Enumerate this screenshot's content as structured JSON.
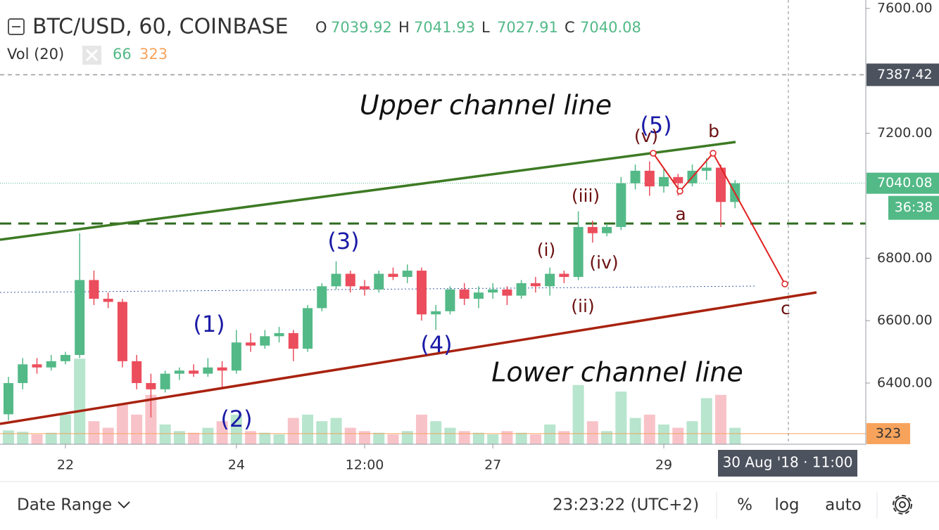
{
  "chart_data": {
    "type": "candlestick",
    "title": "BTC/USD, 60, COINBASE",
    "ohlc_legend": [
      {
        "label": "O",
        "value": 7039.92
      },
      {
        "label": "H",
        "value": 7041.93
      },
      {
        "label": "L",
        "value": 7027.91
      },
      {
        "label": "C",
        "value": 7040.08
      }
    ],
    "categories": [
      null,
      null,
      null,
      null,
      "22",
      null,
      null,
      null,
      null,
      null,
      null,
      null,
      null,
      null,
      null,
      null,
      "24",
      null,
      null,
      null,
      null,
      null,
      null,
      null,
      null,
      "12:00",
      null,
      null,
      null,
      null,
      null,
      null,
      null,
      null,
      "27",
      null,
      null,
      null,
      null,
      null,
      null,
      null,
      null,
      null,
      null,
      null,
      "29",
      null,
      null,
      null,
      null,
      null
    ],
    "open": [
      6300,
      6400,
      6460,
      6450,
      6470,
      6490,
      6730,
      6670,
      6660,
      6470,
      6400,
      6380,
      6430,
      6440,
      6430,
      6450,
      6440,
      6530,
      6520,
      6550,
      6560,
      6510,
      6640,
      6710,
      6750,
      6710,
      6700,
      6750,
      6740,
      6760,
      6620,
      6630,
      6700,
      6670,
      6690,
      6700,
      6680,
      6720,
      6710,
      6750,
      6740,
      6900,
      6880,
      6900,
      7040,
      7080,
      7030,
      7060,
      7040,
      7080,
      7090,
      6980
    ],
    "high": [
      6420,
      6480,
      6480,
      6490,
      6500,
      6880,
      6760,
      6690,
      6670,
      6490,
      6430,
      6440,
      6450,
      6460,
      6480,
      6470,
      6570,
      6560,
      6570,
      6580,
      6570,
      6650,
      6720,
      6790,
      6760,
      6730,
      6760,
      6770,
      6780,
      6770,
      6650,
      6710,
      6720,
      6710,
      6720,
      6710,
      6730,
      6740,
      6770,
      6760,
      6950,
      6920,
      6910,
      7060,
      7100,
      7110,
      7090,
      7070,
      7100,
      7120,
      7100,
      7050
    ],
    "low": [
      6280,
      6380,
      6430,
      6440,
      6460,
      6480,
      6650,
      6640,
      6450,
      6380,
      6290,
      6370,
      6410,
      6420,
      6420,
      6380,
      6430,
      6500,
      6510,
      6530,
      6470,
      6500,
      6630,
      6700,
      6690,
      6680,
      6690,
      6730,
      6720,
      6600,
      6570,
      6620,
      6650,
      6640,
      6670,
      6650,
      6670,
      6690,
      6680,
      6720,
      6730,
      6850,
      6870,
      6890,
      7020,
      7000,
      7010,
      7000,
      7030,
      7050,
      6900,
      6960
    ],
    "close": [
      6400,
      6460,
      6450,
      6470,
      6490,
      6730,
      6670,
      6660,
      6470,
      6400,
      6380,
      6430,
      6440,
      6430,
      6450,
      6440,
      6530,
      6520,
      6550,
      6560,
      6510,
      6640,
      6710,
      6750,
      6710,
      6700,
      6750,
      6740,
      6760,
      6620,
      6630,
      6700,
      6670,
      6690,
      6700,
      6680,
      6720,
      6710,
      6750,
      6740,
      6900,
      6880,
      6900,
      7040,
      7080,
      7030,
      7060,
      7040,
      7080,
      7090,
      6980,
      7040
    ],
    "up_color": "#53b987",
    "down_color": "#eb4d5c",
    "ylim": [
      6204,
      7627
    ],
    "yticks": [
      {
        "value": 7600,
        "label": "7600.00"
      },
      {
        "value": 7200,
        "label": "7200.00"
      },
      {
        "value": 6800,
        "label": "6800.00"
      },
      {
        "value": 6600,
        "label": "6600.00"
      },
      {
        "value": 6400,
        "label": "6400.00"
      }
    ],
    "alert_price": 7387.42,
    "last_price": 7040.08,
    "countdown": "36:38",
    "volume": {
      "name": "Vol (20)",
      "last": 66,
      "ma": 323,
      "up_color": "#b7e5cd",
      "down_color": "#f8c3c8",
      "ma_color": "#f7a35c",
      "values": [
        420,
        380,
        300,
        350,
        900,
        2600,
        700,
        500,
        1200,
        900,
        1500,
        600,
        400,
        350,
        500,
        700,
        900,
        400,
        350,
        300,
        800,
        900,
        700,
        800,
        500,
        400,
        350,
        300,
        400,
        900,
        700,
        500,
        400,
        350,
        300,
        400,
        350,
        300,
        600,
        400,
        1800,
        700,
        400,
        1600,
        800,
        900,
        600,
        500,
        700,
        1400,
        1500,
        500
      ],
      "y2lim": [
        0,
        13500
      ]
    },
    "crosshair_label": "30 Aug '18 · 11:00",
    "annotations": [
      "Upper channel line",
      "Lower channel line",
      "(1)",
      "(2)",
      "(3)",
      "(4)",
      "(5)",
      "(i)",
      "(ii)",
      "(iii)",
      "(iv)",
      "(v)",
      "a",
      "b",
      "c"
    ]
  },
  "toolbar": {
    "date_range": "Date Range",
    "clock": "23:23:22 (UTC+2)",
    "percent": "%",
    "log": "log",
    "auto": "auto"
  }
}
